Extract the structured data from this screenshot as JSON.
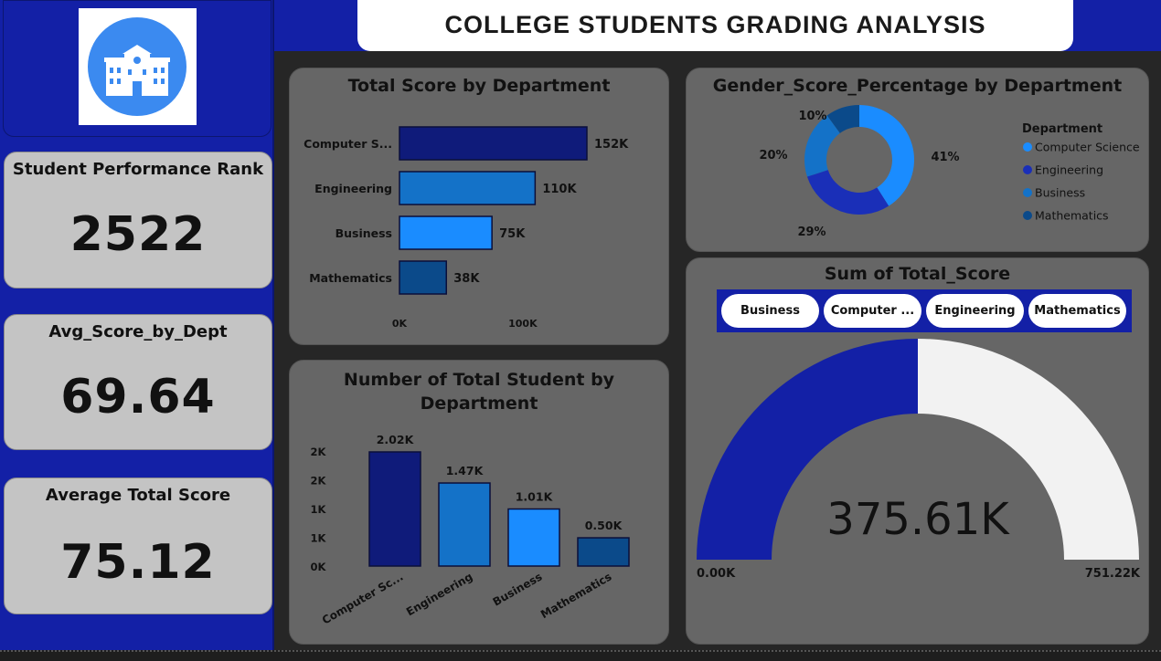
{
  "header": {
    "title": "COLLEGE STUDENTS GRADING ANALYSIS"
  },
  "sidebar": {
    "logo_icon": "school-building-icon",
    "kpis": [
      {
        "title": "Student Performance Rank",
        "value": "2522"
      },
      {
        "title": "Avg_Score_by_Dept",
        "value": "69.64"
      },
      {
        "title": "Average Total Score",
        "value": "75.12"
      }
    ]
  },
  "colors": {
    "dark_navy": "#0f1b7a",
    "royal_blue": "#1a2fb8",
    "mid_blue": "#1472c8",
    "sky_blue": "#1a8cff",
    "steel_blue": "#0b4a8a",
    "gauge_fill": "#1320a6",
    "gauge_empty": "#f2f2f2"
  },
  "total_score_chart": {
    "title": "Total Score by Department",
    "chart_data": {
      "type": "bar",
      "orientation": "horizontal",
      "categories": [
        "Computer S...",
        "Engineering",
        "Business",
        "Mathematics"
      ],
      "values": [
        152,
        110,
        75,
        38
      ],
      "data_labels": [
        "152K",
        "110K",
        "75K",
        "38K"
      ],
      "x_ticks": [
        "0K",
        "100K"
      ],
      "xlim": [
        0,
        152
      ]
    }
  },
  "gender_chart": {
    "title": "Gender_Score_Percentage by Department",
    "chart_data": {
      "type": "pie",
      "donut": true,
      "labels": [
        "Computer Science",
        "Engineering",
        "Business",
        "Mathematics"
      ],
      "values": [
        41,
        29,
        20,
        10
      ],
      "data_labels": [
        "41%",
        "29%",
        "20%",
        "10%"
      ],
      "legend_title": "Department",
      "legend_position": "right"
    }
  },
  "student_count_chart": {
    "title_line1": "Number of Total Student by",
    "title_line2": "Department",
    "chart_data": {
      "type": "bar",
      "categories": [
        "Computer Sc...",
        "Engineering",
        "Business",
        "Mathematics"
      ],
      "values": [
        2020,
        1470,
        1010,
        500
      ],
      "data_labels": [
        "2.02K",
        "1.47K",
        "1.01K",
        "0.50K"
      ],
      "y_ticks": [
        "2K",
        "2K",
        "1K",
        "1K",
        "0K"
      ],
      "ylim": [
        0,
        2020
      ]
    }
  },
  "gauge": {
    "title": "Sum of Total_Score",
    "slicer_options": [
      "Business",
      "Computer ...",
      "Engineering",
      "Mathematics"
    ],
    "value": 375.61,
    "value_label": "375.61K",
    "min_label": "0.00K",
    "max_label": "751.22K",
    "max": 751.22
  }
}
